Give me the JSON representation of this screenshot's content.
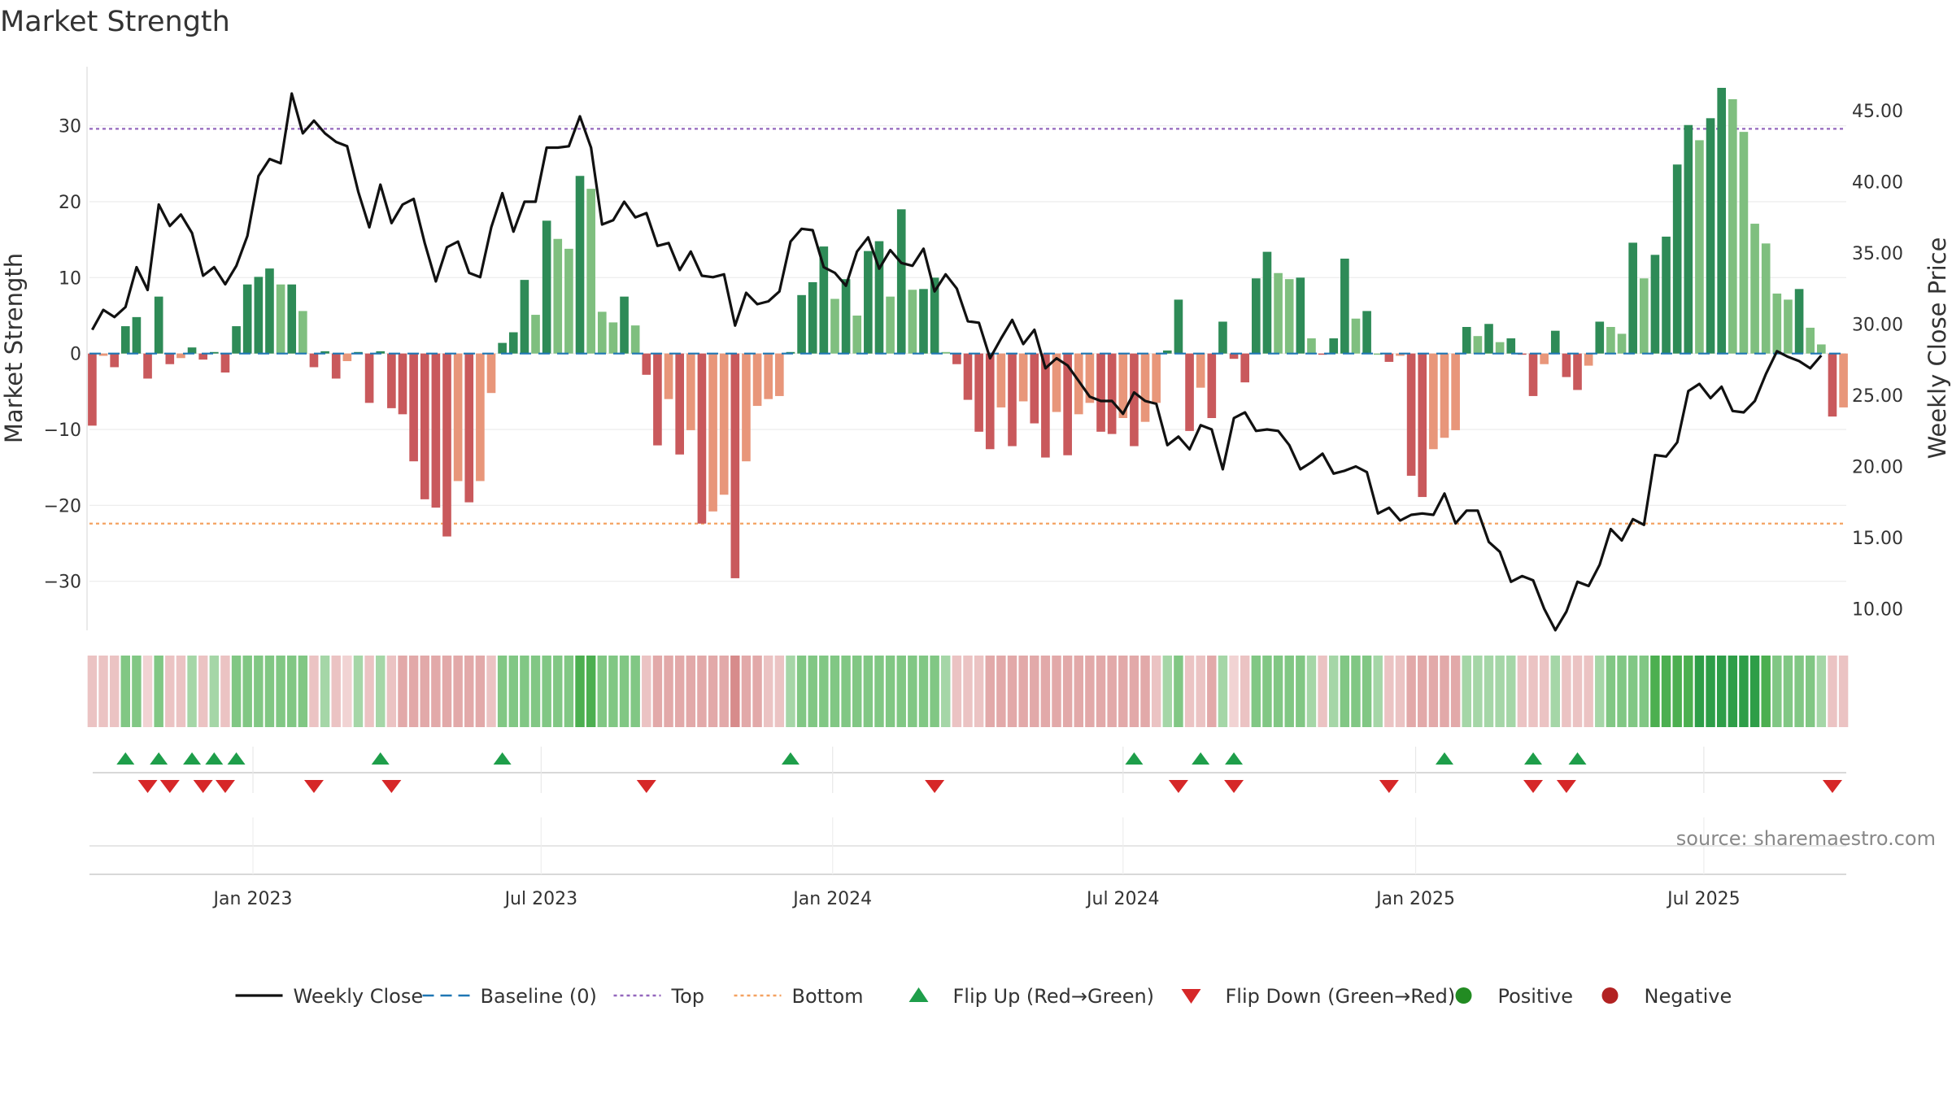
{
  "chart_data": {
    "type": "bar",
    "title": "Market Strength",
    "ylabel_left": "Market Strength",
    "ylabel_right": "Weekly Close Price",
    "source": "source: sharemaestro.com",
    "ylim_left": [
      -37,
      38
    ],
    "ylim_right": [
      8.2,
      48.2
    ],
    "yticks_left": [
      {
        "v": 30,
        "label": "30"
      },
      {
        "v": 20,
        "label": "20"
      },
      {
        "v": 10,
        "label": "10"
      },
      {
        "v": 0,
        "label": "0"
      },
      {
        "v": -10,
        "label": "−10"
      },
      {
        "v": -20,
        "label": "−20"
      },
      {
        "v": -30,
        "label": "−30"
      }
    ],
    "yticks_right": [
      {
        "v": 45,
        "label": "45.00"
      },
      {
        "v": 40,
        "label": "40.00"
      },
      {
        "v": 35,
        "label": "35.00"
      },
      {
        "v": 30,
        "label": "30.00"
      },
      {
        "v": 25,
        "label": "25.00"
      },
      {
        "v": 20,
        "label": "20.00"
      },
      {
        "v": 15,
        "label": "15.00"
      },
      {
        "v": 10,
        "label": "10.00"
      }
    ],
    "xticks": [
      {
        "i": 14.5,
        "label": "Jan 2023"
      },
      {
        "i": 40.5,
        "label": "Jul 2023"
      },
      {
        "i": 66.8,
        "label": "Jan 2024"
      },
      {
        "i": 93,
        "label": "Jul 2024"
      },
      {
        "i": 119.4,
        "label": "Jan 2025"
      },
      {
        "i": 145.4,
        "label": "Jul 2025"
      }
    ],
    "reference_lines": {
      "baseline": 0,
      "top": 29.6,
      "bottom": -22.4
    },
    "colors": {
      "close": "#111111",
      "baseline": "#1f77b4",
      "top": "#9467bd",
      "bottom": "#f4a261",
      "pos_strong": "#2e8b57",
      "pos_weak": "#7fbf7f",
      "neg_strong": "#c9595c",
      "neg_weak": "#e8967a",
      "flip_up": "#1e9e4a",
      "flip_down": "#d62728",
      "positive": "#228b22",
      "negative": "#b22222"
    },
    "strength": [
      -9.5,
      -0.3,
      -1.8,
      3.6,
      4.8,
      -3.3,
      7.5,
      -1.4,
      -0.6,
      0.8,
      -0.8,
      0.2,
      -2.5,
      3.6,
      9.1,
      10.1,
      11.2,
      9.1,
      9.1,
      5.6,
      -1.8,
      0.3,
      -3.3,
      -1.0,
      0.2,
      -6.5,
      0.3,
      -7.2,
      -8.0,
      -14.2,
      -19.2,
      -20.3,
      -24.1,
      -16.8,
      -19.6,
      -16.8,
      -5.2,
      1.4,
      2.8,
      9.7,
      5.1,
      17.5,
      15.1,
      13.8,
      23.4,
      21.7,
      5.5,
      4.1,
      7.5,
      3.7,
      -2.8,
      -12.1,
      -6.0,
      -13.3,
      -10.1,
      -22.4,
      -20.8,
      -18.6,
      -29.6,
      -14.2,
      -6.9,
      -6.0,
      -5.6,
      0.2,
      7.7,
      9.4,
      14.1,
      7.2,
      9.8,
      5.0,
      13.5,
      14.8,
      7.5,
      19.0,
      8.4,
      8.5,
      10.0,
      0.2,
      -1.4,
      -6.1,
      -10.3,
      -12.6,
      -7.1,
      -12.2,
      -6.3,
      -9.2,
      -13.7,
      -7.7,
      -13.4,
      -8.0,
      -6.5,
      -10.3,
      -10.6,
      -8.5,
      -12.2,
      -9.0,
      -6.5,
      0.4,
      7.1,
      -10.2,
      -4.5,
      -8.5,
      4.2,
      -0.7,
      -3.8,
      9.9,
      13.4,
      10.6,
      9.8,
      10.0,
      2.0,
      -0.1,
      2.0,
      12.5,
      4.6,
      5.6,
      0.0,
      -1.1,
      -0.3,
      -16.1,
      -18.9,
      -12.6,
      -11.1,
      -10.1,
      3.5,
      2.3,
      3.9,
      1.5,
      2.0,
      -0.1,
      -5.6,
      -1.4,
      3.0,
      -3.1,
      -4.8,
      -1.6,
      4.2,
      3.5,
      2.6,
      14.6,
      9.9,
      13.0,
      15.4,
      24.9,
      30.1,
      28.1,
      31.0,
      35.0,
      33.5,
      29.2,
      17.1,
      14.5,
      7.9,
      7.1,
      8.5,
      3.4,
      1.2,
      -8.3,
      -7.1
    ],
    "close": [
      29.6,
      31.0,
      30.5,
      31.2,
      34.0,
      32.4,
      38.4,
      36.9,
      37.7,
      36.4,
      33.4,
      34.0,
      32.8,
      34.1,
      36.2,
      40.4,
      41.6,
      41.3,
      46.2,
      43.4,
      44.3,
      43.4,
      42.8,
      42.5,
      39.3,
      36.8,
      39.8,
      37.1,
      38.4,
      38.8,
      35.7,
      33.0,
      35.4,
      35.8,
      33.6,
      33.3,
      36.8,
      39.2,
      36.5,
      38.6,
      38.6,
      42.4,
      42.4,
      42.5,
      44.6,
      42.4,
      37.0,
      37.3,
      38.6,
      37.5,
      37.8,
      35.5,
      35.7,
      33.8,
      35.1,
      33.4,
      33.3,
      33.5,
      29.9,
      32.2,
      31.4,
      31.6,
      32.3,
      35.8,
      36.7,
      36.6,
      34.0,
      33.6,
      32.7,
      35.1,
      36.1,
      33.9,
      35.2,
      34.3,
      34.1,
      35.3,
      32.3,
      33.5,
      32.5,
      30.2,
      30.1,
      27.6,
      29.0,
      30.3,
      28.6,
      29.6,
      26.9,
      27.6,
      27.1,
      26.0,
      24.9,
      24.6,
      24.6,
      23.7,
      25.2,
      24.6,
      24.4,
      21.5,
      22.1,
      21.2,
      22.9,
      22.6,
      19.8,
      23.4,
      23.8,
      22.5,
      22.6,
      22.5,
      21.5,
      19.8,
      20.3,
      20.9,
      19.5,
      19.7,
      20.0,
      19.6,
      16.7,
      17.1,
      16.2,
      16.6,
      16.7,
      16.6,
      18.1,
      16.0,
      16.9,
      16.9,
      14.7,
      14.0,
      11.9,
      12.3,
      12.0,
      10.0,
      8.5,
      9.8,
      11.9,
      11.6,
      13.1,
      15.6,
      14.8,
      16.3,
      15.9,
      20.8,
      20.7,
      21.7,
      25.3,
      25.8,
      24.8,
      25.6,
      23.9,
      23.8,
      24.6,
      26.5,
      28.1,
      27.7,
      27.4,
      26.9,
      27.8
    ],
    "heat_levels": [
      2,
      2,
      2,
      3,
      3,
      1,
      3,
      2,
      2,
      2,
      2,
      2,
      2,
      3,
      3,
      3,
      3,
      3,
      3,
      3,
      2,
      2,
      2,
      1,
      2,
      2,
      2,
      2,
      3,
      3,
      3,
      3,
      3,
      3,
      3,
      3,
      2,
      3,
      3,
      3,
      3,
      3,
      3,
      3,
      4,
      4,
      3,
      3,
      3,
      3,
      2,
      3,
      3,
      3,
      3,
      3,
      3,
      3,
      4,
      3,
      3,
      2,
      2,
      2,
      3,
      3,
      3,
      3,
      3,
      3,
      3,
      3,
      3,
      3,
      3,
      3,
      3,
      2,
      2,
      2,
      2,
      3,
      3,
      3,
      3,
      3,
      3,
      3,
      3,
      3,
      3,
      3,
      3,
      3,
      3,
      3,
      2,
      2,
      3,
      2,
      2,
      3,
      2,
      1,
      2,
      3,
      3,
      3,
      3,
      3,
      2,
      2,
      2,
      3,
      3,
      3,
      2,
      2,
      2,
      3,
      3,
      3,
      3,
      3,
      2,
      2,
      2,
      2,
      2,
      2,
      2,
      2,
      2,
      2,
      2,
      2,
      2,
      3,
      3,
      3,
      3,
      4,
      4,
      4,
      4,
      5,
      5,
      5,
      5,
      5,
      5,
      4,
      3,
      3,
      3,
      3,
      2,
      2,
      2
    ],
    "flip_up": [
      3,
      6,
      9,
      11,
      13,
      26,
      37,
      63,
      94,
      100,
      103,
      122,
      130,
      134
    ],
    "flip_down": [
      5,
      7,
      10,
      12,
      20,
      27,
      50,
      76,
      98,
      103,
      117,
      130,
      133,
      157
    ],
    "legend": [
      {
        "label": "Weekly Close",
        "sym": "line",
        "color": "#111111"
      },
      {
        "label": "Baseline (0)",
        "sym": "dash",
        "color": "#1f77b4"
      },
      {
        "label": "Top",
        "sym": "dot",
        "color": "#9467bd"
      },
      {
        "label": "Bottom",
        "sym": "dot",
        "color": "#f4a261"
      },
      {
        "label": "Flip Up (Red→Green)",
        "sym": "tri-up",
        "color": "#1e9e4a"
      },
      {
        "label": "Flip Down (Green→Red)",
        "sym": "tri-down",
        "color": "#d62728"
      },
      {
        "label": "Positive",
        "sym": "circle",
        "color": "#228b22"
      },
      {
        "label": "Negative",
        "sym": "circle",
        "color": "#b22222"
      }
    ]
  }
}
